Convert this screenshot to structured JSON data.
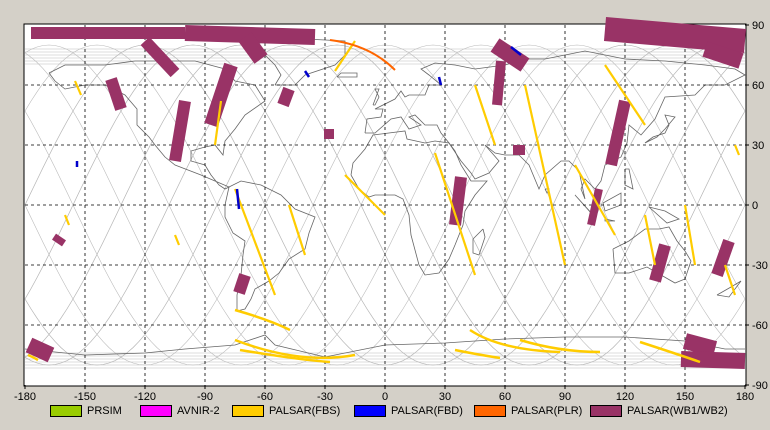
{
  "x_ticks": [
    "-180",
    "-150",
    "-120",
    "-90",
    "-60",
    "-30",
    "0",
    "30",
    "60",
    "90",
    "120",
    "150",
    "180"
  ],
  "y_ticks": [
    "90",
    "60",
    "30",
    "0",
    "-30",
    "-60",
    "-90"
  ],
  "legend": [
    {
      "label": "PRSIM",
      "color": "#99cc00"
    },
    {
      "label": "AVNIR-2",
      "color": "#ff00ff"
    },
    {
      "label": "PALSAR(FBS)",
      "color": "#ffcc00"
    },
    {
      "label": "PALSAR(FBD)",
      "color": "#0000ff"
    },
    {
      "label": "PALSAR(PLR)",
      "color": "#ff6600"
    },
    {
      "label": "PALSAR(WB1/WB2)",
      "color": "#993366"
    }
  ],
  "colors": {
    "FBS": "#ffcc00",
    "FBD": "#0000cc",
    "PLR": "#ff6600",
    "WB": "#993366",
    "grid": "#000000",
    "orbit": "#bbbbbb",
    "coast": "#666666"
  },
  "wb_swaths": [
    {
      "lon1": -137,
      "lat1": 63,
      "lon2": -132,
      "lat2": 48,
      "w": 3
    },
    {
      "lon1": -77,
      "lat1": 70,
      "lon2": -87,
      "lat2": 40,
      "w": 3.5
    },
    {
      "lon1": -100,
      "lat1": 52,
      "lon2": -105,
      "lat2": 22,
      "w": 3
    },
    {
      "lon1": -48,
      "lat1": 58,
      "lon2": -51,
      "lat2": 50,
      "w": 3
    },
    {
      "lon1": -28,
      "lat1": 38,
      "lon2": -28,
      "lat2": 33,
      "w": 2.5
    },
    {
      "lon1": 58,
      "lat1": 72,
      "lon2": 56,
      "lat2": 50,
      "w": 2.5
    },
    {
      "lon1": 120,
      "lat1": 52,
      "lon2": 113,
      "lat2": 20,
      "w": 3
    },
    {
      "lon1": 107,
      "lat1": 8,
      "lon2": 103,
      "lat2": -10,
      "w": 2
    },
    {
      "lon1": 38,
      "lat1": 14,
      "lon2": 35,
      "lat2": -10,
      "w": 3
    },
    {
      "lon1": 67,
      "lat1": 30,
      "lon2": 67,
      "lat2": 25,
      "w": 3
    },
    {
      "lon1": 172,
      "lat1": -18,
      "lon2": 166,
      "lat2": -35,
      "w": 3
    },
    {
      "lon1": 140,
      "lat1": -20,
      "lon2": 135,
      "lat2": -38,
      "w": 3
    },
    {
      "lon1": -70,
      "lat1": -35,
      "lon2": -73,
      "lat2": -44,
      "w": 3
    },
    {
      "lon1": -162,
      "lat1": -16,
      "lon2": -164,
      "lat2": -19,
      "w": 3
    }
  ],
  "wb_polar": [
    {
      "lon1": -177,
      "lat1": 86,
      "lon2": -100,
      "lat2": 86,
      "w": 3
    },
    {
      "lon1": -100,
      "lat1": 86,
      "lon2": -35,
      "lat2": 84,
      "w": 4
    },
    {
      "lon1": -120,
      "lat1": 82,
      "lon2": -105,
      "lat2": 66,
      "w": 3
    },
    {
      "lon1": -70,
      "lat1": 84,
      "lon2": -62,
      "lat2": 73,
      "w": 4
    },
    {
      "lon1": 55,
      "lat1": 80,
      "lon2": 70,
      "lat2": 70,
      "w": 4
    },
    {
      "lon1": 110,
      "lat1": 88,
      "lon2": 180,
      "lat2": 82,
      "w": 6
    },
    {
      "lon1": 160,
      "lat1": 78,
      "lon2": 178,
      "lat2": 72,
      "w": 4
    },
    {
      "lon1": -178,
      "lat1": -70,
      "lon2": -167,
      "lat2": -75,
      "w": 4
    },
    {
      "lon1": 150,
      "lat1": -68,
      "lon2": 165,
      "lat2": -72,
      "w": 4
    },
    {
      "lon1": 148,
      "lat1": -77,
      "lon2": 180,
      "lat2": -78,
      "w": 4
    }
  ],
  "fbs_tracks": [
    {
      "lon1": -25,
      "lat1": 67,
      "lon2": -15,
      "lat2": 82
    },
    {
      "lon1": -85,
      "lat1": 30,
      "lon2": -82,
      "lat2": 52
    },
    {
      "lon1": -75,
      "lat1": 8,
      "lon2": -55,
      "lat2": -45
    },
    {
      "lon1": -48,
      "lat1": 0,
      "lon2": -40,
      "lat2": -25
    },
    {
      "lon1": -20,
      "lat1": 15,
      "lon2": 0,
      "lat2": -5
    },
    {
      "lon1": 25,
      "lat1": 26,
      "lon2": 45,
      "lat2": -35
    },
    {
      "lon1": 45,
      "lat1": 60,
      "lon2": 55,
      "lat2": 30
    },
    {
      "lon1": 70,
      "lat1": 60,
      "lon2": 90,
      "lat2": -30
    },
    {
      "lon1": 110,
      "lat1": 70,
      "lon2": 130,
      "lat2": 40
    },
    {
      "lon1": 95,
      "lat1": 20,
      "lon2": 115,
      "lat2": -15
    },
    {
      "lon1": 130,
      "lat1": -5,
      "lon2": 135,
      "lat2": -30
    },
    {
      "lon1": 150,
      "lat1": 0,
      "lon2": 155,
      "lat2": -30
    },
    {
      "lon1": 170,
      "lat1": -30,
      "lon2": 175,
      "lat2": -45
    },
    {
      "lon1": 175,
      "lat1": 30,
      "lon2": 177,
      "lat2": 25
    },
    {
      "lon1": -155,
      "lat1": 62,
      "lon2": -152,
      "lat2": 55
    },
    {
      "lon1": -160,
      "lat1": -5,
      "lon2": -158,
      "lat2": -10
    },
    {
      "lon1": -105,
      "lat1": -15,
      "lon2": -103,
      "lat2": -20
    }
  ],
  "fbs_arcs": [
    {
      "x1": 235,
      "y1": 340,
      "cx": 300,
      "cy": 365,
      "x2": 355,
      "y2": 355
    },
    {
      "x1": 240,
      "y1": 350,
      "cx": 300,
      "cy": 360,
      "x2": 330,
      "y2": 362
    },
    {
      "x1": 470,
      "y1": 330,
      "cx": 500,
      "cy": 350,
      "x2": 560,
      "y2": 352
    },
    {
      "x1": 455,
      "y1": 350,
      "cx": 480,
      "cy": 355,
      "x2": 500,
      "y2": 358
    },
    {
      "x1": 520,
      "y1": 340,
      "cx": 560,
      "cy": 352,
      "x2": 600,
      "y2": 352
    },
    {
      "x1": 640,
      "y1": 342,
      "cx": 680,
      "cy": 355,
      "x2": 700,
      "y2": 362
    },
    {
      "x1": 235,
      "y1": 310,
      "cx": 270,
      "cy": 320,
      "x2": 290,
      "y2": 330
    },
    {
      "x1": 28,
      "y1": 355,
      "cx": 33,
      "cy": 357,
      "x2": 38,
      "y2": 360
    }
  ],
  "plr_arcs": [
    {
      "x1": 330,
      "y1": 40,
      "cx": 370,
      "cy": 45,
      "x2": 395,
      "y2": 70
    }
  ],
  "fbd_tracks": [
    {
      "lon1": -74,
      "lat1": 8,
      "lon2": -73,
      "lat2": -2
    },
    {
      "lon1": -40,
      "lat1": 67,
      "lon2": -38,
      "lat2": 64
    },
    {
      "lon1": 27,
      "lat1": 64,
      "lon2": 28,
      "lat2": 60
    },
    {
      "lon1": 63,
      "lat1": 79,
      "lon2": 68,
      "lat2": 75
    },
    {
      "lon1": -154,
      "lat1": 22,
      "lon2": -154,
      "lat2": 19
    }
  ]
}
